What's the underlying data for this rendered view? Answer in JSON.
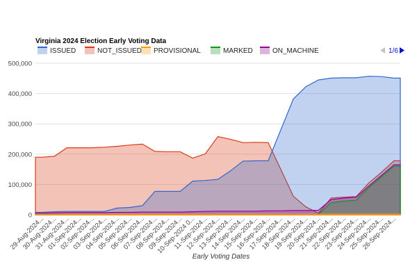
{
  "chart_data": {
    "type": "area",
    "title": "Virginia 2024 Election Early Voting Data",
    "xlabel": "Early Voting Dates",
    "ylabel": "",
    "ylim": [
      0,
      500000
    ],
    "yticks": [
      "0",
      "100,000",
      "200,000",
      "300,000",
      "400,000",
      "500,000"
    ],
    "grid": true,
    "legend_position": "top",
    "legend_page": "1/6",
    "categories": [
      "29-Aug-2024...",
      "30-Aug-2024...",
      "31-Aug-2024...",
      "01-Sep-2024...",
      "02-Sep-2024...",
      "03-Sep-2024...",
      "04-Sep-2024...",
      "05-Sep-2024...",
      "06-Sep-2024...",
      "07-Sep-2024...",
      "08-Sep-2024...",
      "09-Sep-2024...",
      "10-Sep-2024 0...",
      "11-Sep-2024...",
      "12-Sep-2024...",
      "13-Sep-2024...",
      "14-Sep-2024...",
      "15-Sep-2024...",
      "16-Sep-2024...",
      "17-Sep-2024...",
      "18-Sep-2024...",
      "19-Sep-2024...",
      "20-Sep-2024...",
      "21-Sep-2024...",
      "22-Sep-2024...",
      "23-Sep-2024...",
      "24-Sep-2024...",
      "25-Sep-2024...",
      "26-Sep-2024..."
    ],
    "series": [
      {
        "name": "ISSUED",
        "color": "#3366cc",
        "values": [
          8000,
          10000,
          11000,
          11000,
          11000,
          11000,
          22000,
          24000,
          30000,
          77000,
          77000,
          77000,
          111000,
          113000,
          117000,
          145000,
          177000,
          178000,
          178000,
          280000,
          382000,
          423000,
          445000,
          451000,
          452000,
          452000,
          457000,
          456000,
          451000
        ]
      },
      {
        "name": "NOT_ISSUED",
        "color": "#dc3912",
        "values": [
          190000,
          193000,
          221000,
          221000,
          221000,
          223000,
          226000,
          230000,
          233000,
          209000,
          208000,
          208000,
          187000,
          201000,
          258000,
          249000,
          238000,
          239000,
          238000,
          150000,
          61000,
          26000,
          5000,
          55000,
          58000,
          60000,
          105000,
          140000,
          178000
        ]
      },
      {
        "name": "PROVISIONAL",
        "color": "#ff9900",
        "values": [
          2000,
          2000,
          2000,
          2000,
          2000,
          2000,
          2000,
          2000,
          2000,
          2000,
          2000,
          2000,
          2000,
          2000,
          2000,
          2000,
          2000,
          2000,
          2000,
          2000,
          2000,
          2000,
          2000,
          2000,
          2000,
          2000,
          2000,
          2000,
          2000
        ]
      },
      {
        "name": "MARKED",
        "color": "#109618",
        "values": [
          1000,
          1000,
          1000,
          1000,
          1000,
          1000,
          1000,
          1000,
          1000,
          1000,
          1000,
          1000,
          1000,
          1000,
          1000,
          1000,
          1000,
          1000,
          1000,
          1000,
          1000,
          1000,
          2000,
          40000,
          45000,
          48000,
          90000,
          125000,
          160000
        ]
      },
      {
        "name": "ON_MACHINE",
        "color": "#990099",
        "values": [
          5000,
          6000,
          7000,
          7000,
          7000,
          7000,
          8000,
          8000,
          9000,
          9000,
          9000,
          9000,
          10000,
          11000,
          12000,
          12000,
          12000,
          12000,
          13000,
          13000,
          14000,
          14000,
          15000,
          50000,
          55000,
          58000,
          95000,
          130000,
          165000
        ]
      }
    ]
  }
}
